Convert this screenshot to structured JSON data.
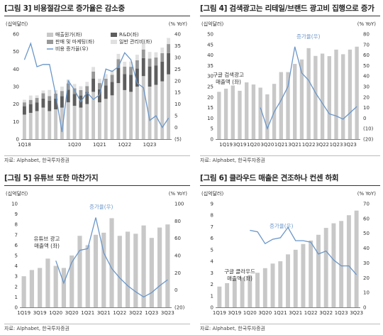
{
  "panels": [
    {
      "title": "[그림 3] 비용절감으로 증가율은 감소중",
      "source": "자료: Alphabet, 한국투자증권",
      "chart_data": {
        "type": "bar",
        "stacked": true,
        "unit_left": "(십억달러)",
        "unit_right": "(% YoY)",
        "ylim_left": [
          0,
          60
        ],
        "yticks_left": [
          0,
          10,
          20,
          30,
          40,
          50,
          60
        ],
        "ylim_right": [
          -5,
          40
        ],
        "yticks_right": [
          -5,
          0,
          5,
          10,
          15,
          20,
          25,
          30,
          35,
          40
        ],
        "x_tick_labels": [
          "1Q18",
          "1Q20",
          "1Q21",
          "1Q22",
          "1Q23"
        ],
        "x_tick_index": [
          0,
          8,
          12,
          16,
          20
        ],
        "categories": [
          "1Q18",
          "2Q18",
          "3Q18",
          "4Q18",
          "1Q19",
          "2Q19",
          "3Q19",
          "4Q19",
          "1Q20",
          "2Q20",
          "3Q20",
          "4Q20",
          "1Q21",
          "2Q21",
          "3Q21",
          "4Q21",
          "1Q22",
          "2Q22",
          "3Q22",
          "4Q22",
          "1Q23",
          "2Q23",
          "3Q23",
          "4Q23"
        ],
        "series": [
          {
            "name": "매출원가(좌)",
            "kind": "bar",
            "color": "#c8c8c8",
            "values": [
              14,
              15,
              16,
              18,
              16,
              17,
              18,
              21,
              19,
              18,
              20,
              27,
              21,
              23,
              25,
              32,
              28,
              27,
              30,
              36,
              30,
              31,
              33,
              37
            ]
          },
          {
            "name": "R&D(좌)",
            "kind": "bar",
            "color": "#5e5e5e",
            "values": [
              4.8,
              5.0,
              5.0,
              5.2,
              6.0,
              6.2,
              6.5,
              7.2,
              6.8,
              6.9,
              7.0,
              7.6,
              7.5,
              7.7,
              7.7,
              8.7,
              9.1,
              9.8,
              10.3,
              10.3,
              11.5,
              11.1,
              11.3,
              12.1
            ]
          },
          {
            "name": "판매 및 마케팅(좌)",
            "kind": "bar",
            "color": "#989898",
            "values": [
              2.2,
              2.4,
              2.5,
              3.0,
              2.6,
              2.8,
              3.0,
              3.6,
              3.2,
              3.1,
              3.3,
              4.0,
              3.5,
              3.8,
              4.0,
              5.0,
              4.3,
              4.5,
              4.7,
              4.9,
              4.5,
              4.5,
              4.8,
              5.2
            ]
          },
          {
            "name": "일반 관리비(좌)",
            "kind": "bar",
            "color": "#e0e0e0",
            "values": [
              1.5,
              2.5,
              1.5,
              1.6,
              3.5,
              2.0,
              2.5,
              2.2,
              2.5,
              2.2,
              2.4,
              2.6,
              2.5,
              2.6,
              2.6,
              3.0,
              2.8,
              3.0,
              3.2,
              3.5,
              3.8,
              3.0,
              3.2,
              3.5
            ]
          },
          {
            "name": "비용 증가율(우)",
            "kind": "line",
            "color": "#6a96c8",
            "values": [
              29,
              36,
              26,
              27,
              27,
              14,
              -2,
              20,
              16,
              11,
              15,
              12,
              14,
              25,
              24,
              26,
              32,
              29,
              19,
              17,
              3,
              5,
              0,
              4
            ]
          }
        ]
      }
    },
    {
      "title": "[그림 4] 검색광고는 리테일/브랜드 광고비 집행으로 증가",
      "source": "자료: Alphabet, 한국투자증권",
      "chart_data": {
        "type": "bar",
        "unit_left": "(십억달러)",
        "unit_right": "(% YoY)",
        "ylim_left": [
          0,
          50
        ],
        "yticks_left": [
          0,
          5,
          10,
          15,
          20,
          25,
          30,
          35,
          40,
          45,
          50
        ],
        "ylim_right": [
          -20,
          80
        ],
        "yticks_right": [
          -20,
          -10,
          0,
          10,
          20,
          30,
          40,
          50,
          60,
          70,
          80
        ],
        "x_tick_labels": [
          "1Q19",
          "3Q19",
          "1Q20",
          "3Q20",
          "1Q21",
          "3Q21",
          "1Q22",
          "3Q22",
          "1Q23",
          "3Q23"
        ],
        "x_tick_index": [
          1,
          3,
          5,
          7,
          9,
          11,
          13,
          15,
          17,
          19
        ],
        "categories": [
          "3Q18",
          "4Q18",
          "1Q19",
          "2Q19",
          "3Q19",
          "4Q19",
          "1Q20",
          "2Q20",
          "3Q20",
          "4Q20",
          "1Q21",
          "2Q21",
          "3Q21",
          "4Q21",
          "1Q22",
          "2Q22",
          "3Q22",
          "4Q22",
          "1Q23",
          "2Q23",
          "3Q23"
        ],
        "series": [
          {
            "name": "구글 검색광고 매출액 (좌)",
            "kind": "bar",
            "color": "#c8c8c8",
            "values": [
              22.5,
              24,
              25.5,
              23,
              27,
              26,
              24.5,
              21.3,
              26.3,
              31.9,
              31.9,
              35.8,
              37.9,
              43.3,
              39.6,
              40.7,
              39.5,
              42.6,
              40.4,
              42.6,
              44
            ]
          },
          {
            "name": "증가율(우)",
            "kind": "line",
            "color": "#6a96c8",
            "values": [
              null,
              null,
              null,
              null,
              null,
              null,
              10,
              -10,
              6,
              17,
              30,
              68,
              43,
              36,
              24,
              14,
              4,
              2,
              -1,
              5,
              11
            ]
          }
        ],
        "line_label": "증가율(우)",
        "bar_label": "구글 검색광고\n매출액 (좌)"
      }
    },
    {
      "title": "[그림 5] 유튜브 또한 마찬가지",
      "source": "자료: Alphabet, 한국투자증권",
      "chart_data": {
        "type": "bar",
        "unit_left": "(십억달러)",
        "unit_right": "(% YoY)",
        "ylim_left": [
          0,
          10
        ],
        "yticks_left": [
          0,
          1,
          2,
          3,
          4,
          5,
          6,
          7,
          8,
          9,
          10
        ],
        "ylim_right": [
          -20,
          100
        ],
        "yticks_right": [
          -20,
          0,
          20,
          40,
          60,
          80,
          100
        ],
        "x_tick_labels": [
          "1Q19",
          "3Q19",
          "1Q20",
          "3Q20",
          "1Q21",
          "3Q21",
          "1Q22",
          "3Q22",
          "1Q23",
          "3Q23"
        ],
        "x_tick_index": [
          0,
          2,
          4,
          6,
          8,
          10,
          12,
          14,
          16,
          18
        ],
        "categories": [
          "1Q19",
          "2Q19",
          "3Q19",
          "4Q19",
          "1Q20",
          "2Q20",
          "3Q20",
          "4Q20",
          "1Q21",
          "2Q21",
          "3Q21",
          "4Q21",
          "1Q22",
          "2Q22",
          "3Q22",
          "4Q22",
          "1Q23",
          "2Q23",
          "3Q23"
        ],
        "series": [
          {
            "name": "유튜브 광고 매출액 (좌)",
            "kind": "bar",
            "color": "#c8c8c8",
            "values": [
              3.0,
              3.6,
              3.8,
              4.7,
              4.0,
              3.8,
              5.0,
              6.9,
              6.0,
              7.0,
              7.2,
              8.6,
              6.9,
              7.3,
              7.1,
              7.9,
              6.7,
              7.7,
              8.0
            ]
          },
          {
            "name": "증가율(우)",
            "kind": "line",
            "color": "#6a96c8",
            "values": [
              null,
              null,
              null,
              null,
              34,
              8,
              32,
              46,
              48,
              84,
              43,
              25,
              14,
              5,
              -2,
              -8,
              -3,
              5,
              12
            ]
          }
        ],
        "line_label": "증가율(우)",
        "bar_label": "유튜브 광고\n매출액 (좌)"
      }
    },
    {
      "title": "[그림 6] 클라우드 매출은 견조하나 컨센 하회",
      "source": "자료: Alphabet, 한국투자증권",
      "chart_data": {
        "type": "bar",
        "unit_left": "(십억달러)",
        "unit_right": "(% YoY)",
        "ylim_left": [
          0,
          9
        ],
        "yticks_left": [
          0,
          1,
          2,
          3,
          4,
          5,
          6,
          7,
          8,
          9
        ],
        "ylim_right": [
          0,
          70
        ],
        "yticks_right": [
          0,
          10,
          20,
          30,
          40,
          50,
          60,
          70
        ],
        "x_tick_labels": [
          "1Q19",
          "3Q19",
          "1Q20",
          "3Q20",
          "1Q21",
          "3Q21",
          "1Q22",
          "3Q22",
          "1Q23",
          "3Q23"
        ],
        "x_tick_index": [
          0,
          2,
          4,
          6,
          8,
          10,
          12,
          14,
          16,
          18
        ],
        "categories": [
          "1Q19",
          "2Q19",
          "3Q19",
          "4Q19",
          "1Q20",
          "2Q20",
          "3Q20",
          "4Q20",
          "1Q21",
          "2Q21",
          "3Q21",
          "4Q21",
          "1Q22",
          "2Q22",
          "3Q22",
          "4Q22",
          "1Q23",
          "2Q23",
          "3Q23"
        ],
        "series": [
          {
            "name": "구글 클라우드 매출액 (좌)",
            "kind": "bar",
            "color": "#c8c8c8",
            "values": [
              1.8,
              2.1,
              2.4,
              2.6,
              2.8,
              3.0,
              3.4,
              3.8,
              4.0,
              4.6,
              5.0,
              5.5,
              5.8,
              6.3,
              6.9,
              7.3,
              7.5,
              8.0,
              8.4
            ]
          },
          {
            "name": "증가율(우)",
            "kind": "line",
            "color": "#6a96c8",
            "values": [
              null,
              null,
              null,
              null,
              52,
              51,
              43,
              46,
              47,
              54,
              45,
              45,
              44,
              36,
              38,
              32,
              28,
              28,
              22
            ]
          }
        ],
        "line_label": "증가율(우)",
        "bar_label": "구글 클라우드\n매출액 (좌)"
      }
    }
  ]
}
